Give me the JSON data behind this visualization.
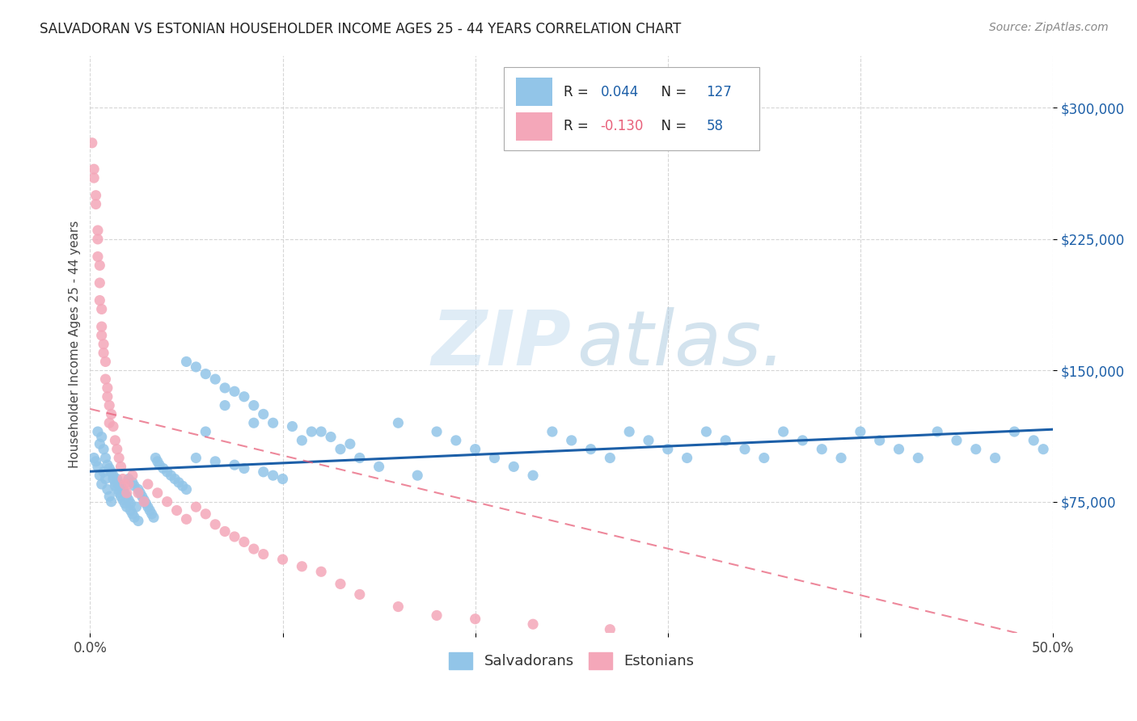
{
  "title": "SALVADORAN VS ESTONIAN HOUSEHOLDER INCOME AGES 25 - 44 YEARS CORRELATION CHART",
  "source": "Source: ZipAtlas.com",
  "ylabel": "Householder Income Ages 25 - 44 years",
  "y_tick_labels": [
    "$75,000",
    "$150,000",
    "$225,000",
    "$300,000"
  ],
  "y_tick_values": [
    75000,
    150000,
    225000,
    300000
  ],
  "ylim": [
    0,
    330000
  ],
  "xlim": [
    0.0,
    0.5
  ],
  "blue_color": "#92c5e8",
  "pink_color": "#f4a7b9",
  "blue_line_color": "#1c5fa8",
  "pink_line_color": "#e8607a",
  "legend_label_blue": "Salvadorans",
  "legend_label_pink": "Estonians",
  "sal_x": [
    0.002,
    0.003,
    0.004,
    0.004,
    0.005,
    0.005,
    0.006,
    0.006,
    0.007,
    0.007,
    0.008,
    0.008,
    0.009,
    0.009,
    0.01,
    0.01,
    0.011,
    0.011,
    0.012,
    0.012,
    0.013,
    0.013,
    0.014,
    0.014,
    0.015,
    0.015,
    0.016,
    0.016,
    0.017,
    0.017,
    0.018,
    0.018,
    0.019,
    0.019,
    0.02,
    0.02,
    0.021,
    0.021,
    0.022,
    0.022,
    0.023,
    0.023,
    0.024,
    0.025,
    0.025,
    0.026,
    0.027,
    0.028,
    0.029,
    0.03,
    0.031,
    0.032,
    0.033,
    0.034,
    0.035,
    0.036,
    0.038,
    0.04,
    0.042,
    0.044,
    0.046,
    0.048,
    0.05,
    0.055,
    0.06,
    0.065,
    0.07,
    0.075,
    0.08,
    0.085,
    0.09,
    0.095,
    0.1,
    0.11,
    0.12,
    0.13,
    0.14,
    0.15,
    0.16,
    0.17,
    0.18,
    0.19,
    0.2,
    0.21,
    0.22,
    0.23,
    0.24,
    0.25,
    0.26,
    0.27,
    0.28,
    0.29,
    0.3,
    0.31,
    0.32,
    0.33,
    0.34,
    0.35,
    0.36,
    0.37,
    0.38,
    0.39,
    0.4,
    0.41,
    0.42,
    0.43,
    0.44,
    0.45,
    0.46,
    0.47,
    0.48,
    0.49,
    0.495,
    0.05,
    0.055,
    0.06,
    0.065,
    0.07,
    0.075,
    0.08,
    0.085,
    0.09,
    0.095,
    0.105,
    0.115,
    0.125,
    0.135
  ],
  "sal_y": [
    100000,
    98000,
    115000,
    95000,
    108000,
    90000,
    112000,
    85000,
    105000,
    92000,
    100000,
    88000,
    96000,
    82000,
    94000,
    78000,
    92000,
    75000,
    90000,
    88000,
    86000,
    84000,
    88000,
    82000,
    85000,
    80000,
    84000,
    78000,
    82000,
    76000,
    80000,
    74000,
    78000,
    72000,
    88000,
    76000,
    74000,
    70000,
    86000,
    68000,
    84000,
    66000,
    72000,
    82000,
    64000,
    80000,
    78000,
    76000,
    74000,
    72000,
    70000,
    68000,
    66000,
    100000,
    98000,
    96000,
    94000,
    92000,
    90000,
    88000,
    86000,
    84000,
    82000,
    100000,
    115000,
    98000,
    130000,
    96000,
    94000,
    120000,
    92000,
    90000,
    88000,
    110000,
    115000,
    105000,
    100000,
    95000,
    120000,
    90000,
    115000,
    110000,
    105000,
    100000,
    95000,
    90000,
    115000,
    110000,
    105000,
    100000,
    115000,
    110000,
    105000,
    100000,
    115000,
    110000,
    105000,
    100000,
    115000,
    110000,
    105000,
    100000,
    115000,
    110000,
    105000,
    100000,
    115000,
    110000,
    105000,
    100000,
    115000,
    110000,
    105000,
    155000,
    152000,
    148000,
    145000,
    140000,
    138000,
    135000,
    130000,
    125000,
    120000,
    118000,
    115000,
    112000,
    108000
  ],
  "est_x": [
    0.001,
    0.002,
    0.002,
    0.003,
    0.003,
    0.004,
    0.004,
    0.004,
    0.005,
    0.005,
    0.005,
    0.006,
    0.006,
    0.006,
    0.007,
    0.007,
    0.008,
    0.008,
    0.009,
    0.009,
    0.01,
    0.01,
    0.011,
    0.012,
    0.013,
    0.014,
    0.015,
    0.016,
    0.017,
    0.018,
    0.019,
    0.02,
    0.022,
    0.025,
    0.028,
    0.03,
    0.035,
    0.04,
    0.045,
    0.05,
    0.055,
    0.06,
    0.065,
    0.07,
    0.075,
    0.08,
    0.085,
    0.09,
    0.1,
    0.11,
    0.12,
    0.13,
    0.14,
    0.16,
    0.18,
    0.2,
    0.23,
    0.27
  ],
  "est_y": [
    280000,
    265000,
    260000,
    245000,
    250000,
    225000,
    230000,
    215000,
    210000,
    190000,
    200000,
    185000,
    170000,
    175000,
    165000,
    160000,
    155000,
    145000,
    140000,
    135000,
    130000,
    120000,
    125000,
    118000,
    110000,
    105000,
    100000,
    95000,
    88000,
    85000,
    80000,
    85000,
    90000,
    80000,
    75000,
    85000,
    80000,
    75000,
    70000,
    65000,
    72000,
    68000,
    62000,
    58000,
    55000,
    52000,
    48000,
    45000,
    42000,
    38000,
    35000,
    28000,
    22000,
    15000,
    10000,
    8000,
    5000,
    2000
  ]
}
